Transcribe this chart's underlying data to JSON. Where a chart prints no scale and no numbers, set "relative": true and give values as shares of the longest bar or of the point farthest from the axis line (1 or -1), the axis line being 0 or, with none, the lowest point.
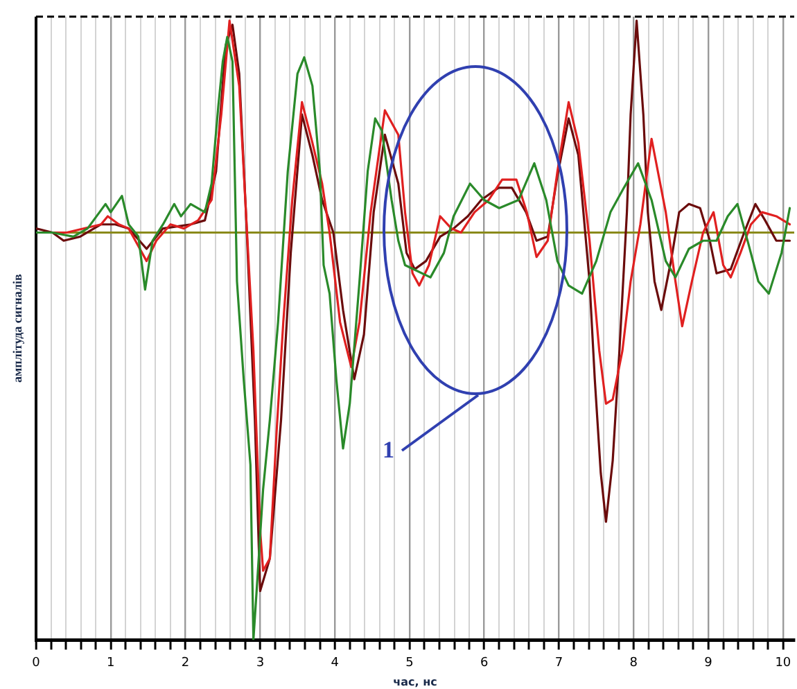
{
  "chart_data": {
    "type": "line",
    "relative": true,
    "xlabel": "час, нс",
    "ylabel": "амплітуда сигналів",
    "xlim": [
      0,
      10.15
    ],
    "xticks": [
      0,
      {
        "value": 0.2,
        "label": null
      },
      {
        "value": 0.4,
        "label": null
      },
      {
        "value": 0.6,
        "label": null
      },
      {
        "value": 0.8,
        "label": null
      },
      1,
      {
        "value": 1.2,
        "label": null
      },
      {
        "value": 1.4,
        "label": null
      },
      {
        "value": 1.6,
        "label": null
      },
      {
        "value": 1.8,
        "label": null
      },
      2,
      {
        "value": 2.2,
        "label": null
      },
      {
        "value": 2.4,
        "label": null
      },
      {
        "value": 2.6,
        "label": null
      },
      {
        "value": 2.8,
        "label": null
      },
      3,
      {
        "value": 3.2,
        "label": null
      },
      {
        "value": 3.4,
        "label": null
      },
      {
        "value": 3.6,
        "label": null
      },
      {
        "value": 3.8,
        "label": null
      },
      4,
      {
        "value": 4.2,
        "label": null
      },
      {
        "value": 4.4,
        "label": null
      },
      {
        "value": 4.6,
        "label": null
      },
      {
        "value": 4.8,
        "label": null
      },
      5,
      {
        "value": 5.2,
        "label": null
      },
      {
        "value": 5.4,
        "label": null
      },
      {
        "value": 5.6,
        "label": null
      },
      {
        "value": 5.8,
        "label": null
      },
      6,
      {
        "value": 6.2,
        "label": null
      },
      {
        "value": 6.4,
        "label": null
      },
      {
        "value": 6.6,
        "label": null
      },
      {
        "value": 6.8,
        "label": null
      },
      7,
      {
        "value": 7.2,
        "label": null
      },
      {
        "value": 7.4,
        "label": null
      },
      {
        "value": 7.6,
        "label": null
      },
      {
        "value": 7.8,
        "label": null
      },
      8,
      {
        "value": 8.2,
        "label": null
      },
      {
        "value": 8.4,
        "label": null
      },
      {
        "value": 8.6,
        "label": null
      },
      {
        "value": 8.8,
        "label": null
      },
      9,
      {
        "value": 9.2,
        "label": null
      },
      {
        "value": 9.4,
        "label": null
      },
      {
        "value": 9.6,
        "label": null
      },
      {
        "value": 9.8,
        "label": null
      },
      10
    ],
    "grid": "x",
    "legend": false,
    "line_style": "solid",
    "marker": "none",
    "ref_lines": [
      {
        "axis": "y",
        "value": 0,
        "color": "#8a8a1a"
      }
    ],
    "annotations": [
      "1"
    ],
    "series": [
      {
        "color": "#2a8a2a",
        "x": [
          0,
          0.22,
          0.5,
          0.69,
          0.93,
          1.0,
          1.15,
          1.24,
          1.37,
          1.46,
          1.56,
          1.7,
          1.85,
          1.94,
          2.07,
          2.26,
          2.35,
          2.44,
          2.5,
          2.56,
          2.63,
          2.69,
          2.78,
          2.87,
          2.91,
          2.96,
          3.04,
          3.13,
          3.24,
          3.37,
          3.5,
          3.59,
          3.7,
          3.8,
          3.85,
          3.93,
          4.02,
          4.11,
          4.2,
          4.33,
          4.44,
          4.54,
          4.63,
          4.76,
          4.85,
          4.94,
          5.28,
          5.46,
          5.59,
          5.81,
          6.0,
          6.2,
          6.46,
          6.67,
          6.83,
          6.98,
          7.13,
          7.31,
          7.5,
          7.69,
          7.87,
          8.06,
          8.24,
          8.43,
          8.56,
          8.74,
          8.93,
          9.11,
          9.26,
          9.39,
          9.54,
          9.67,
          9.81,
          9.98,
          10.09
        ],
        "values": [
          0,
          0,
          -0.01,
          0.01,
          0.07,
          0.05,
          0.09,
          0.02,
          -0.01,
          -0.14,
          -0.02,
          0.02,
          0.07,
          0.04,
          0.07,
          0.05,
          0.12,
          0.31,
          0.42,
          0.48,
          0.42,
          -0.12,
          -0.36,
          -0.57,
          -1.0,
          -0.86,
          -0.63,
          -0.46,
          -0.22,
          0.15,
          0.39,
          0.43,
          0.36,
          0.15,
          -0.08,
          -0.15,
          -0.36,
          -0.53,
          -0.42,
          -0.12,
          0.15,
          0.28,
          0.25,
          0.08,
          -0.02,
          -0.08,
          -0.11,
          -0.05,
          0.04,
          0.12,
          0.08,
          0.06,
          0.08,
          0.17,
          0.08,
          -0.07,
          -0.13,
          -0.15,
          -0.07,
          0.05,
          0.11,
          0.17,
          0.08,
          -0.07,
          -0.11,
          -0.04,
          -0.02,
          -0.02,
          0.04,
          0.07,
          -0.03,
          -0.12,
          -0.15,
          -0.05,
          0.06
        ]
      },
      {
        "color": "#e02020",
        "x": [
          0,
          0.41,
          0.87,
          0.96,
          1.11,
          1.24,
          1.33,
          1.48,
          1.61,
          1.8,
          1.98,
          2.17,
          2.35,
          2.48,
          2.59,
          2.72,
          2.81,
          2.91,
          3.0,
          3.04,
          3.13,
          3.22,
          3.31,
          3.43,
          3.56,
          3.7,
          3.83,
          3.93,
          4.07,
          4.22,
          4.33,
          4.48,
          4.67,
          4.85,
          4.94,
          5.04,
          5.13,
          5.26,
          5.41,
          5.56,
          5.69,
          5.87,
          6.06,
          6.24,
          6.43,
          6.57,
          6.7,
          6.85,
          6.98,
          7.13,
          7.26,
          7.41,
          7.54,
          7.63,
          7.72,
          7.85,
          7.96,
          8.09,
          8.24,
          8.43,
          8.56,
          8.65,
          8.78,
          8.93,
          9.07,
          9.2,
          9.3,
          9.43,
          9.57,
          9.72,
          9.91,
          10.09
        ],
        "values": [
          0,
          0,
          0.02,
          0.04,
          0.02,
          0.01,
          -0.02,
          -0.07,
          -0.02,
          0.02,
          0.01,
          0.03,
          0.08,
          0.29,
          0.52,
          0.36,
          0.05,
          -0.29,
          -0.73,
          -0.83,
          -0.8,
          -0.49,
          -0.22,
          0.08,
          0.32,
          0.22,
          0.12,
          0,
          -0.22,
          -0.33,
          -0.22,
          0.05,
          0.3,
          0.24,
          0.05,
          -0.1,
          -0.13,
          -0.08,
          0.04,
          0.01,
          0,
          0.05,
          0.08,
          0.13,
          0.13,
          0.05,
          -0.06,
          -0.02,
          0.15,
          0.32,
          0.22,
          -0.02,
          -0.29,
          -0.42,
          -0.41,
          -0.29,
          -0.12,
          0.02,
          0.23,
          0.05,
          -0.12,
          -0.23,
          -0.12,
          0,
          0.05,
          -0.08,
          -0.11,
          -0.05,
          0.02,
          0.05,
          0.04,
          0.02
        ]
      },
      {
        "color": "#6b0c0c",
        "x": [
          0,
          0.22,
          0.37,
          0.59,
          0.87,
          1.06,
          1.24,
          1.48,
          1.7,
          2.07,
          2.26,
          2.41,
          2.54,
          2.63,
          2.72,
          2.81,
          2.93,
          3.0,
          3.13,
          3.28,
          3.41,
          3.56,
          3.7,
          3.83,
          3.98,
          4.11,
          4.26,
          4.39,
          4.52,
          4.67,
          4.85,
          4.96,
          5.07,
          5.22,
          5.41,
          5.59,
          5.78,
          5.96,
          6.19,
          6.37,
          6.56,
          6.7,
          6.85,
          6.98,
          7.13,
          7.26,
          7.41,
          7.48,
          7.56,
          7.63,
          7.72,
          7.81,
          7.91,
          7.96,
          8.04,
          8.13,
          8.19,
          8.28,
          8.37,
          8.5,
          8.61,
          8.74,
          8.89,
          9.02,
          9.11,
          9.3,
          9.48,
          9.63,
          9.76,
          9.91,
          10.09
        ],
        "values": [
          0.01,
          0,
          -0.02,
          -0.01,
          0.02,
          0.02,
          0.01,
          -0.04,
          0.01,
          0.02,
          0.03,
          0.15,
          0.46,
          0.51,
          0.39,
          0.05,
          -0.46,
          -0.88,
          -0.8,
          -0.46,
          -0.05,
          0.29,
          0.19,
          0.08,
          0,
          -0.19,
          -0.36,
          -0.25,
          0.05,
          0.24,
          0.12,
          -0.05,
          -0.09,
          -0.07,
          -0.01,
          0.01,
          0.04,
          0.08,
          0.11,
          0.11,
          0.05,
          -0.02,
          -0.01,
          0.14,
          0.28,
          0.19,
          -0.12,
          -0.36,
          -0.59,
          -0.71,
          -0.56,
          -0.29,
          0.05,
          0.29,
          0.52,
          0.29,
          0.05,
          -0.12,
          -0.19,
          -0.07,
          0.05,
          0.07,
          0.06,
          -0.02,
          -0.1,
          -0.09,
          0,
          0.07,
          0.03,
          -0.02,
          -0.02
        ]
      }
    ]
  }
}
